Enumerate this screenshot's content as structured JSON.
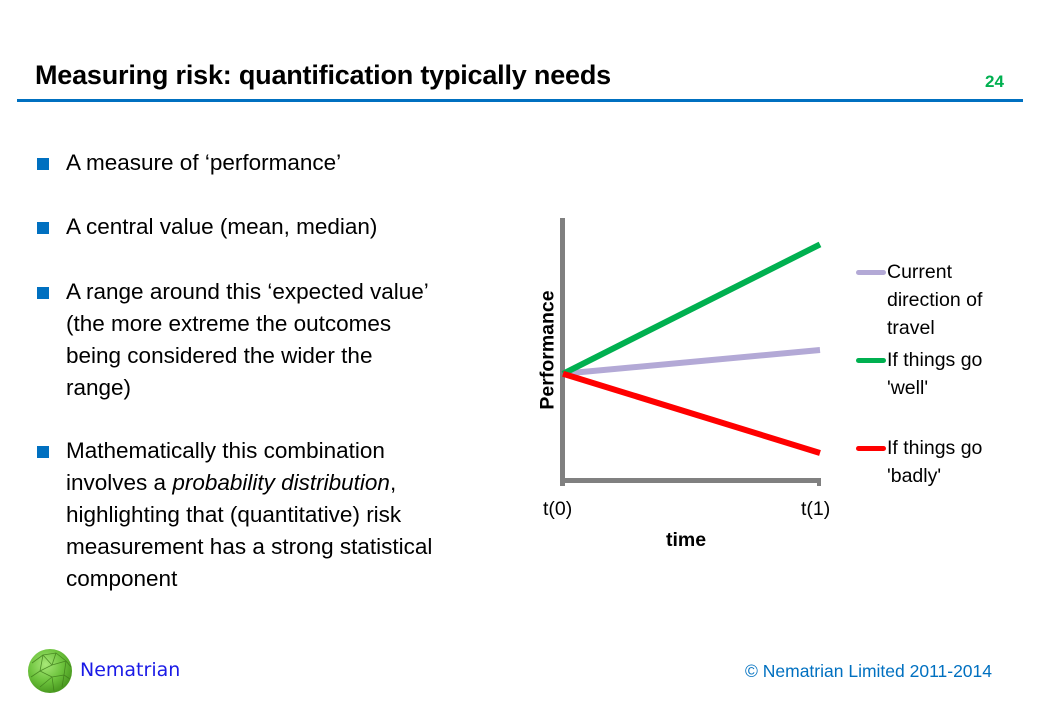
{
  "slide": {
    "title": "Measuring risk: quantification typically needs",
    "page_number": "24",
    "accent_color": "#0070c0",
    "page_number_color": "#00b050"
  },
  "bullets": [
    {
      "lines": [
        "A measure of ‘performance’"
      ]
    },
    {
      "lines": [
        "A central value (mean, median)"
      ]
    },
    {
      "lines": [
        "A range around this ‘expected value’",
        "(the more extreme the outcomes",
        "being considered the wider the",
        "range)"
      ]
    },
    {
      "lines_rich": true,
      "line1": "Mathematically this combination",
      "line2_pre": "involves a ",
      "line2_italic": "probability distribution",
      "line2_post": ",",
      "line3": "highlighting that (quantitative) risk",
      "line4": "measurement has a strong statistical",
      "line5": "component"
    }
  ],
  "chart_data": {
    "type": "line",
    "title": "",
    "xlabel": "time",
    "ylabel": "Performance",
    "x": [
      "t(0)",
      "t(1)"
    ],
    "ylim": [
      0,
      100
    ],
    "grid": false,
    "legend_position": "right",
    "axis_color": "#808080",
    "series": [
      {
        "name": "Current direction of travel",
        "label_lines": [
          "Current",
          "direction of",
          "travel"
        ],
        "color": "#b3a9d6",
        "values": [
          41,
          50
        ]
      },
      {
        "name": "If things go 'well'",
        "label_lines": [
          "If things go",
          "'well'"
        ],
        "color": "#00b050",
        "values": [
          41,
          90
        ]
      },
      {
        "name": "If things go 'badly'",
        "label_lines": [
          "If things go",
          "'badly'"
        ],
        "color": "#ff0000",
        "values": [
          41,
          11
        ]
      }
    ]
  },
  "footer": {
    "brand": "Nematrian",
    "logo_icon": "green-polyhedron-logo",
    "copyright": "© Nematrian Limited 2011-2014"
  }
}
